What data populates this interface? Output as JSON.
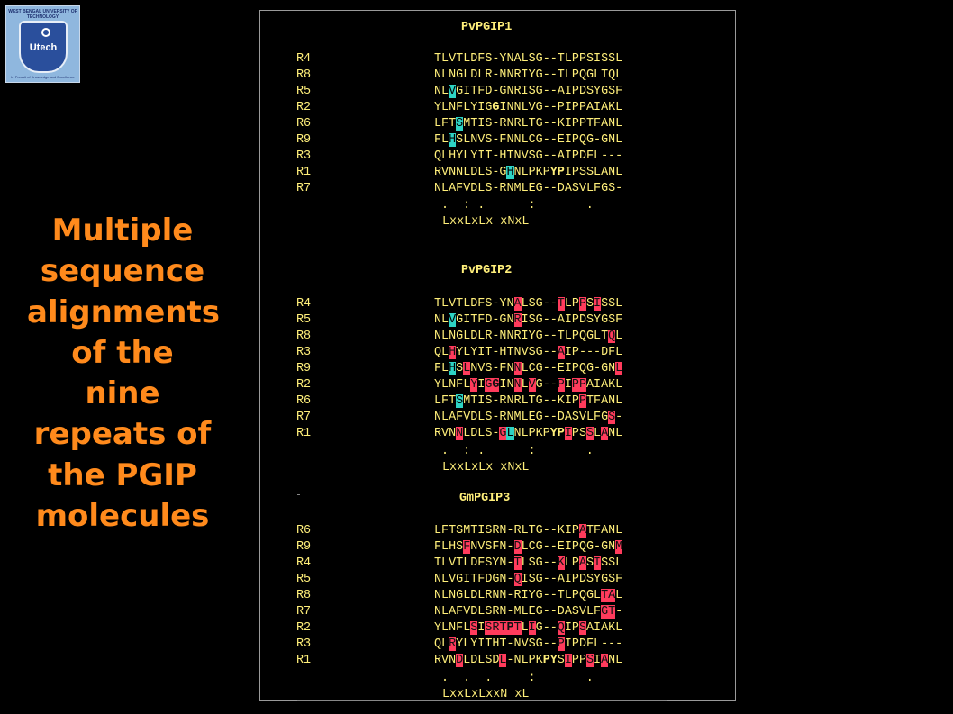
{
  "logo": {
    "university": "WEST BENGAL UNIVERSITY OF TECHNOLOGY",
    "brand": "Utech",
    "motto": "In Pursuit of Knowledge and Excellence"
  },
  "caption": {
    "lines": [
      "Multiple",
      "sequence",
      "alignments",
      "of the",
      "nine",
      "repeats of",
      "the PGIP",
      "molecules"
    ]
  },
  "alignments": [
    {
      "title": "PvPGIP1",
      "rows": [
        {
          "label": "R4",
          "seq": "TLVTLDFS-YNALSG--TLPPSISSL",
          "cyan": [],
          "red": [],
          "bold": []
        },
        {
          "label": "R8",
          "seq": "NLNGLDLR-NNRIYG--TLPQGLTQL",
          "cyan": [],
          "red": [],
          "bold": []
        },
        {
          "label": "R5",
          "seq": "NLVGITFD-GNRISG--AIPDSYGSF",
          "cyan": [
            2
          ],
          "red": [],
          "bold": []
        },
        {
          "label": "R2",
          "seq": "YLNFLYIGGINNLVG--PIPPAIAKL",
          "cyan": [],
          "red": [],
          "bold": [
            8
          ]
        },
        {
          "label": "R6",
          "seq": "LFTSMTIS-RNRLTG--KIPPTFANL",
          "cyan": [
            3
          ],
          "red": [],
          "bold": []
        },
        {
          "label": "R9",
          "seq": "FLHSLNVS-FNNLCG--EIPQG-GNL",
          "cyan": [
            2
          ],
          "red": [],
          "bold": []
        },
        {
          "label": "R3",
          "seq": "QLHYLYIT-HTNVSG--AIPDFL---",
          "cyan": [],
          "red": [],
          "bold": []
        },
        {
          "label": "R1",
          "seq": "RVNNLDLS-GHNLPKPYPIPSSLANL",
          "cyan": [
            10
          ],
          "red": [],
          "bold": [
            16,
            17
          ]
        },
        {
          "label": "R7",
          "seq": "NLAFVDLS-RNMLEG--DASVLFGS-",
          "cyan": [],
          "red": [],
          "bold": []
        }
      ],
      "consensus_marks": " .  : .      :       .",
      "consensus_motif": "LxxLxLx xNxL"
    },
    {
      "title": "PvPGIP2",
      "rows": [
        {
          "label": "R4",
          "seq": "TLVTLDFS-YNALSG--TLPPSISSL",
          "cyan": [],
          "red": [
            11,
            17,
            20,
            22
          ],
          "bold": []
        },
        {
          "label": "R5",
          "seq": "NLVGITFD-GNRISG--AIPDSYGSF",
          "cyan": [
            2
          ],
          "red": [
            11
          ],
          "bold": []
        },
        {
          "label": "R8",
          "seq": "NLNGLDLR-NNRIYG--TLPQGLTQL",
          "cyan": [],
          "red": [
            24
          ],
          "bold": []
        },
        {
          "label": "R3",
          "seq": "QLHYLYIT-HTNVSG--AIP---DFL",
          "cyan": [],
          "red": [
            2,
            17
          ],
          "bold": []
        },
        {
          "label": "R9",
          "seq": "FLHSLNVS-FNNLCG--EIPQG-GNL",
          "cyan": [
            2
          ],
          "red": [
            4,
            11,
            25
          ],
          "bold": []
        },
        {
          "label": "R2",
          "seq": "YLNFLYIGGINNLVG--PIPPAIAKL",
          "cyan": [],
          "red": [
            5,
            7,
            8,
            11,
            13,
            17,
            19,
            20
          ],
          "bold": [
            8
          ]
        },
        {
          "label": "R6",
          "seq": "LFTSMTIS-RNRLTG--KIPPTFANL",
          "cyan": [
            3
          ],
          "red": [
            20
          ],
          "bold": []
        },
        {
          "label": "R7",
          "seq": "NLAFVDLS-RNMLEG--DASVLFGS-",
          "cyan": [],
          "red": [
            24
          ],
          "bold": []
        },
        {
          "label": "R1",
          "seq": "RVNNLDLS-GLNLPKPYPIPSSLANL",
          "cyan": [
            10
          ],
          "red": [
            3,
            9,
            18,
            21,
            23
          ],
          "bold": [
            16,
            17
          ]
        }
      ],
      "consensus_marks": " .  : .      :       .",
      "consensus_motif": "LxxLxLx xNxL"
    },
    {
      "title": "GmPGIP3",
      "rows": [
        {
          "label": "R6",
          "seq": "LFTSMTISRN-RLTG--KIPATFANL",
          "cyan": [],
          "red": [
            20
          ],
          "bold": []
        },
        {
          "label": "R9",
          "seq": "FLHSFNVSFN-DLCG--EIPQG-GNM",
          "cyan": [],
          "red": [
            4,
            11,
            25
          ],
          "bold": []
        },
        {
          "label": "R4",
          "seq": "TLVTLDFSYN-TLSG--KLPASISSL",
          "cyan": [],
          "red": [
            11,
            17,
            20,
            22
          ],
          "bold": []
        },
        {
          "label": "R5",
          "seq": "NLVGITFDGN-QISG--AIPDSYGSF",
          "cyan": [],
          "red": [
            11
          ],
          "bold": []
        },
        {
          "label": "R8",
          "seq": "NLNGLDLRNN-RIYG--TLPQGLTAL",
          "cyan": [],
          "red": [
            23,
            24
          ],
          "bold": []
        },
        {
          "label": "R7",
          "seq": "NLAFVDLSRN-MLEG--DASVLFGT-",
          "cyan": [],
          "red": [
            23,
            24
          ],
          "bold": []
        },
        {
          "label": "R2",
          "seq": "YLNFLSISRTPTLIG--QIPSAIAKL",
          "cyan": [],
          "red": [
            5,
            7,
            8,
            9,
            10,
            11,
            13,
            17,
            20
          ],
          "bold": [
            10
          ]
        },
        {
          "label": "R3",
          "seq": "QLRYLYITHT-NVSG--PIPDFL---",
          "cyan": [],
          "red": [
            2,
            17
          ],
          "bold": []
        },
        {
          "label": "R1",
          "seq": "RVNDLDLSDL-NLPKPYSIPPSIANL",
          "cyan": [],
          "red": [
            3,
            9,
            18,
            21,
            23
          ],
          "bold": [
            15,
            16
          ]
        }
      ],
      "consensus_marks": " .  .  .     :       .",
      "consensus_motif": "LxxLxLxxN xL"
    }
  ],
  "colors": {
    "caption": "#ff8a1c",
    "text": "#ffef7a",
    "cyan_highlight": "#2ed3c4",
    "red_highlight": "#ff3b5c"
  }
}
